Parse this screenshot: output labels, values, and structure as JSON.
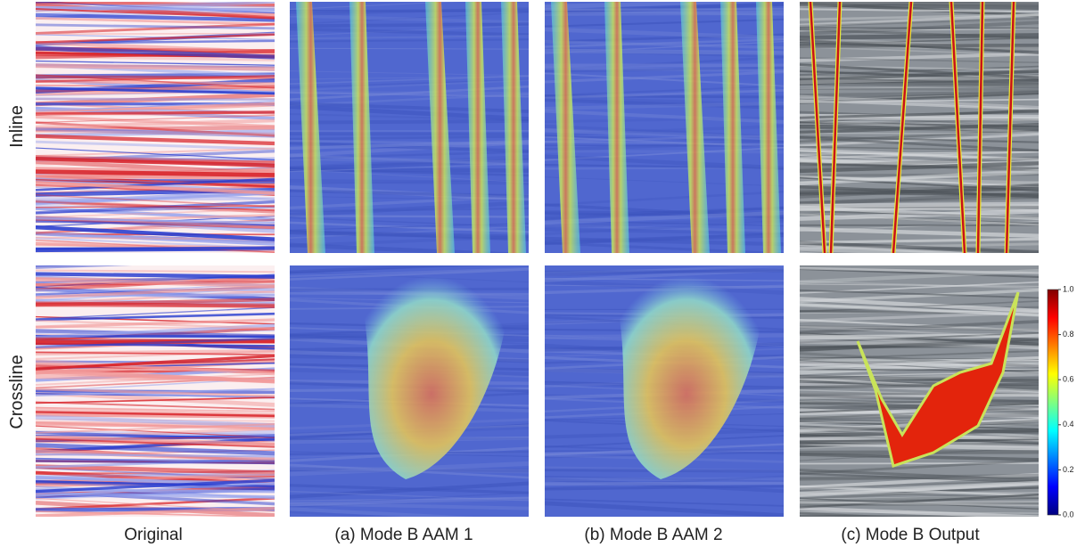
{
  "row_labels": [
    "Inline",
    "Crossline"
  ],
  "captions": [
    "Original",
    "(a) Mode B AAM 1",
    "(b) Mode B AAM 2",
    "(c) Mode B Output"
  ],
  "colorbar": {
    "ticks": [
      {
        "value": 0,
        "label": "0.0"
      },
      {
        "value": 0.2,
        "label": "0.2"
      },
      {
        "value": 0.4,
        "label": "0.4"
      },
      {
        "value": 0.6,
        "label": "0.6"
      },
      {
        "value": 0.8,
        "label": "0.8"
      },
      {
        "value": 1,
        "label": "1.0"
      }
    ]
  }
}
